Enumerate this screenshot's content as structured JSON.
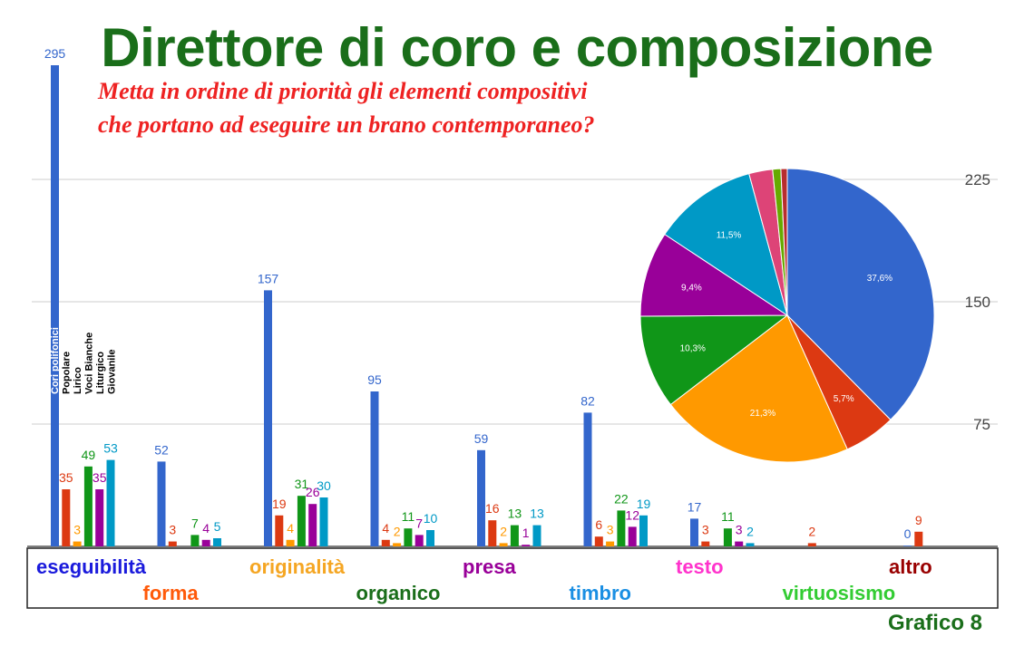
{
  "title": "Direttore di coro e composizione",
  "subtitle_lines": [
    "Metta in ordine di priorità gli elementi compositivi",
    "che portano ad eseguire un brano contemporaneo?"
  ],
  "footer": "Grafico 8",
  "colors": {
    "title": "#1a6e1a",
    "subtitle": "#ee2222",
    "footer": "#1a6e1a",
    "gridline": "#cccccc",
    "value_label": "Cori polifonici"
  },
  "chart_data": [
    {
      "type": "bar",
      "categories": [
        "eseguibilità",
        "forma",
        "originalità",
        "organico",
        "presa",
        "timbro",
        "testo",
        "virtuosismo",
        "altro"
      ],
      "category_colors": [
        "#1a1adc",
        "#ff5a0a",
        "#f5a623",
        "#1a6e1a",
        "#990099",
        "#1a8fe3",
        "#ff33cc",
        "#33cc33",
        "#990000"
      ],
      "series": [
        {
          "name": "Cori polifonici",
          "color": "#3366cc",
          "values": [
            295,
            52,
            157,
            95,
            59,
            82,
            17,
            null,
            0
          ]
        },
        {
          "name": "Popolare",
          "color": "#dc3912",
          "values": [
            35,
            3,
            19,
            4,
            16,
            6,
            3,
            2,
            9
          ]
        },
        {
          "name": "Lirico",
          "color": "#ff9900",
          "values": [
            3,
            null,
            4,
            2,
            2,
            3,
            null,
            null,
            null
          ]
        },
        {
          "name": "Voci Bianche",
          "color": "#109618",
          "values": [
            49,
            7,
            31,
            11,
            13,
            22,
            11,
            null,
            null
          ]
        },
        {
          "name": "Liturgico",
          "color": "#990099",
          "values": [
            35,
            4,
            26,
            7,
            1,
            12,
            3,
            null,
            null
          ]
        },
        {
          "name": "Giovanile",
          "color": "#0099c6",
          "values": [
            53,
            5,
            30,
            10,
            13,
            19,
            2,
            null,
            null
          ]
        }
      ],
      "y_ticks": [
        75,
        150,
        225
      ],
      "ylim": [
        0,
        300
      ]
    },
    {
      "type": "pie",
      "slices": [
        {
          "value": 37.6,
          "label": "37,6%",
          "color": "#3366cc"
        },
        {
          "value": 5.7,
          "label": "5,7%",
          "color": "#dc3912"
        },
        {
          "value": 21.3,
          "label": "21,3%",
          "color": "#ff9900"
        },
        {
          "value": 10.3,
          "label": "10,3%",
          "color": "#109618"
        },
        {
          "value": 9.4,
          "label": "9,4%",
          "color": "#990099"
        },
        {
          "value": 11.5,
          "label": "11,5%",
          "color": "#0099c6"
        },
        {
          "value": 2.6,
          "label": "",
          "color": "#dd4477"
        },
        {
          "value": 0.9,
          "label": "",
          "color": "#66aa00"
        },
        {
          "value": 0.7,
          "label": "",
          "color": "#b82e2e"
        }
      ]
    }
  ]
}
